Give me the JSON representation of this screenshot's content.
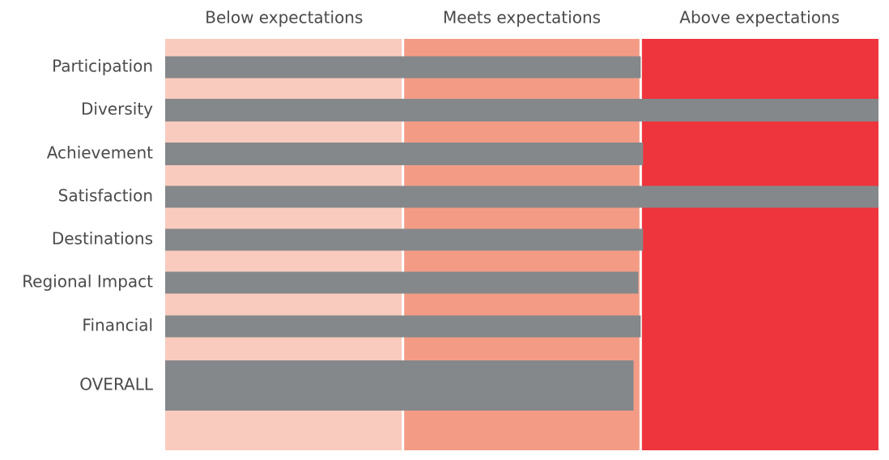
{
  "chart_data": {
    "type": "bar",
    "orientation": "horizontal",
    "title": "",
    "xlabel": "",
    "ylabel": "",
    "xlim": [
      0,
      3
    ],
    "bands": [
      {
        "label": "Below expectations",
        "from": 0,
        "to": 1,
        "color": "#F9CBBE"
      },
      {
        "label": "Meets expectations",
        "from": 1,
        "to": 2,
        "color": "#F49B86"
      },
      {
        "label": "Above expectations",
        "from": 2,
        "to": 3,
        "color": "#EE343C"
      }
    ],
    "categories": [
      "Participation",
      "Diversity",
      "Achievement",
      "Satisfaction",
      "Destinations",
      "Regional Impact",
      "Financial",
      "OVERALL"
    ],
    "values": [
      2.0,
      3.0,
      2.01,
      3.0,
      2.01,
      1.99,
      2.0,
      1.97
    ],
    "bar_color": "#85888B",
    "label_color": "#4A4A4A",
    "grid": false,
    "legend": "none"
  }
}
